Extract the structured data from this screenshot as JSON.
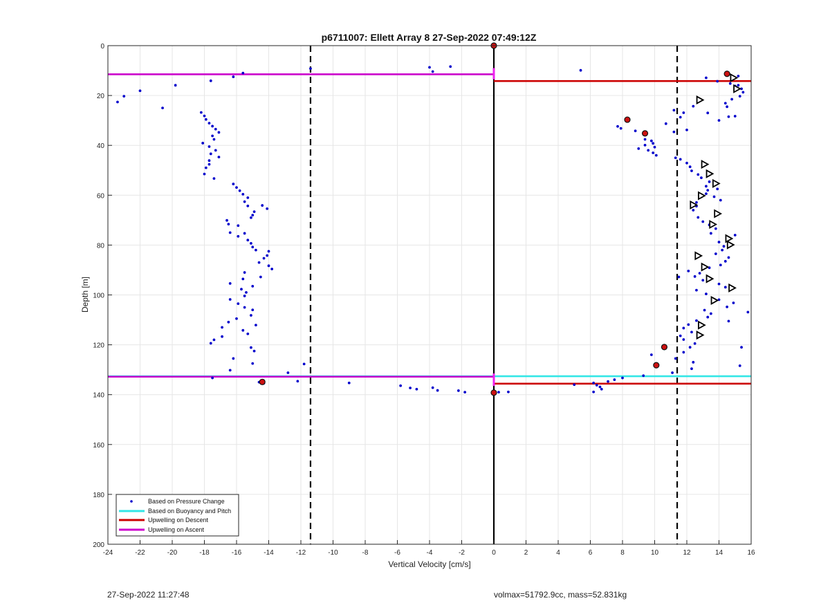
{
  "footer": {
    "timestamp": "27-Sep-2022 11:27:48",
    "float_info": "volmax=51792.9cc, mass=52.831kg"
  },
  "chart_data": {
    "type": "scatter",
    "title": "p6711007: Ellett Array 8 27-Sep-2022 07:49:12Z",
    "xlabel": "Vertical Velocity [cm/s]",
    "ylabel": "Depth [m]",
    "xlim": [
      -24,
      16
    ],
    "ylim": [
      0,
      200
    ],
    "y_reversed": true,
    "grid": true,
    "x_ticks": [
      -24,
      -22,
      -20,
      -18,
      -16,
      -14,
      -12,
      -10,
      -8,
      -6,
      -4,
      -2,
      0,
      2,
      4,
      6,
      8,
      10,
      12,
      14,
      16
    ],
    "y_ticks": [
      0,
      20,
      40,
      60,
      80,
      100,
      120,
      140,
      160,
      180,
      200
    ],
    "legend_position": "bottom-left",
    "legend": [
      {
        "label": "Based on Pressure Change",
        "style": "dot",
        "color": "#0000cc"
      },
      {
        "label": "Based on Buoyancy and Pitch",
        "style": "line",
        "color": "#33e6e6"
      },
      {
        "label": "Upwelling on Descent",
        "style": "line",
        "color": "#cc0000"
      },
      {
        "label": "Upwelling on Ascent",
        "style": "line",
        "color": "#cc00cc"
      }
    ],
    "reference_lines": {
      "threshold_dashed_x": [
        -11.4,
        11.4
      ],
      "zero_line_x": 0
    },
    "upwelling_segments": [
      {
        "series": "Upwelling on Ascent",
        "color": "#cc00cc",
        "x": [
          -24,
          0
        ],
        "y": 11.5
      },
      {
        "series": "Upwelling on Descent",
        "color": "#cc0000",
        "x": [
          0,
          16
        ],
        "y": 14.2
      },
      {
        "series": "Based on Buoyancy and Pitch",
        "color": "#33e6e6",
        "x": [
          -24,
          16
        ],
        "y": 132.6
      },
      {
        "series": "Upwelling on Ascent",
        "color": "#cc00cc",
        "x": [
          -24,
          0
        ],
        "y": 132.8
      },
      {
        "series": "Upwelling on Descent",
        "color": "#cc0000",
        "x": [
          0,
          16
        ],
        "y": 135.6
      }
    ],
    "pressure_change_points": [
      [
        -23.4,
        22.6
      ],
      [
        -23.0,
        20.3
      ],
      [
        -22.0,
        18.1
      ],
      [
        -20.6,
        25.0
      ],
      [
        -19.8,
        15.9
      ],
      [
        -17.6,
        14.1
      ],
      [
        -16.2,
        12.5
      ],
      [
        -15.6,
        11.0
      ],
      [
        -11.4,
        9.2
      ],
      [
        -4.0,
        8.7
      ],
      [
        -3.8,
        10.4
      ],
      [
        -2.7,
        8.4
      ],
      [
        5.4,
        9.9
      ],
      [
        -18.2,
        26.8
      ],
      [
        -18.0,
        28.2
      ],
      [
        -17.9,
        29.6
      ],
      [
        -17.7,
        31.1
      ],
      [
        -17.5,
        32.3
      ],
      [
        -17.3,
        33.5
      ],
      [
        -17.1,
        34.8
      ],
      [
        -17.5,
        36.2
      ],
      [
        -17.4,
        37.6
      ],
      [
        -18.1,
        39.1
      ],
      [
        -17.7,
        40.5
      ],
      [
        -17.3,
        42.0
      ],
      [
        -17.6,
        43.4
      ],
      [
        -17.1,
        44.7
      ],
      [
        -17.7,
        46.1
      ],
      [
        -17.7,
        47.6
      ],
      [
        -17.9,
        49.0
      ],
      [
        -18.0,
        51.5
      ],
      [
        -17.4,
        53.3
      ],
      [
        -16.2,
        55.5
      ],
      [
        -16.0,
        56.9
      ],
      [
        -15.8,
        58.2
      ],
      [
        -15.6,
        59.6
      ],
      [
        -15.3,
        61.0
      ],
      [
        -15.5,
        62.6
      ],
      [
        -15.3,
        64.3
      ],
      [
        -14.4,
        64.1
      ],
      [
        -14.1,
        65.4
      ],
      [
        -14.9,
        66.6
      ],
      [
        -15.0,
        68.0
      ],
      [
        -15.1,
        69.0
      ],
      [
        -16.6,
        70.1
      ],
      [
        -16.5,
        71.6
      ],
      [
        -15.9,
        72.2
      ],
      [
        -16.4,
        75.0
      ],
      [
        -15.5,
        75.3
      ],
      [
        -15.9,
        76.5
      ],
      [
        -15.3,
        78.0
      ],
      [
        -15.1,
        79.3
      ],
      [
        -15.0,
        80.8
      ],
      [
        -14.8,
        82.0
      ],
      [
        -14.0,
        82.5
      ],
      [
        -14.1,
        84.2
      ],
      [
        -14.3,
        85.3
      ],
      [
        -14.6,
        87.0
      ],
      [
        -14.0,
        88.3
      ],
      [
        -13.8,
        89.6
      ],
      [
        -14.5,
        92.8
      ],
      [
        -15.5,
        91.0
      ],
      [
        -15.6,
        93.6
      ],
      [
        -16.4,
        95.4
      ],
      [
        -15.0,
        96.5
      ],
      [
        -15.7,
        97.7
      ],
      [
        -15.4,
        99.0
      ],
      [
        -15.5,
        100.4
      ],
      [
        -16.4,
        101.8
      ],
      [
        -15.9,
        103.5
      ],
      [
        -15.5,
        105.0
      ],
      [
        -15.0,
        106.0
      ],
      [
        -15.1,
        108.2
      ],
      [
        -16.0,
        109.5
      ],
      [
        -16.5,
        110.9
      ],
      [
        -14.8,
        112.1
      ],
      [
        -16.9,
        113.0
      ],
      [
        -15.6,
        114.2
      ],
      [
        -15.3,
        115.6
      ],
      [
        -16.9,
        116.7
      ],
      [
        -17.4,
        118.0
      ],
      [
        -17.6,
        119.4
      ],
      [
        -15.1,
        121.1
      ],
      [
        -14.9,
        122.5
      ],
      [
        -16.2,
        125.5
      ],
      [
        -15.0,
        127.5
      ],
      [
        -11.8,
        127.7
      ],
      [
        -12.8,
        131.2
      ],
      [
        -16.4,
        130.2
      ],
      [
        -17.5,
        133.3
      ],
      [
        -14.6,
        135.0
      ],
      [
        -14.3,
        135.4
      ],
      [
        -12.2,
        134.6
      ],
      [
        -9.0,
        135.3
      ],
      [
        -5.8,
        136.4
      ],
      [
        -5.2,
        137.3
      ],
      [
        -4.8,
        137.8
      ],
      [
        -3.8,
        137.2
      ],
      [
        -3.5,
        138.3
      ],
      [
        -2.2,
        138.4
      ],
      [
        -1.8,
        139.0
      ],
      [
        0.3,
        139.0
      ],
      [
        0.9,
        138.9
      ],
      [
        5.0,
        136.0
      ],
      [
        6.2,
        135.3
      ],
      [
        6.4,
        136.2
      ],
      [
        6.6,
        136.9
      ],
      [
        6.7,
        137.8
      ],
      [
        6.2,
        138.9
      ],
      [
        7.1,
        134.7
      ],
      [
        7.5,
        134.0
      ],
      [
        8.0,
        133.3
      ],
      [
        9.3,
        132.4
      ],
      [
        11.1,
        131.2
      ],
      [
        12.3,
        129.6
      ],
      [
        12.4,
        127.0
      ],
      [
        11.3,
        125.5
      ],
      [
        9.8,
        124.0
      ],
      [
        11.8,
        123.0
      ],
      [
        12.2,
        121.0
      ],
      [
        12.5,
        119.5
      ],
      [
        11.8,
        117.9
      ],
      [
        11.6,
        116.4
      ],
      [
        12.3,
        114.9
      ],
      [
        11.8,
        113.3
      ],
      [
        12.1,
        111.9
      ],
      [
        12.6,
        110.3
      ],
      [
        13.3,
        108.9
      ],
      [
        13.5,
        107.5
      ],
      [
        13.1,
        106.1
      ],
      [
        14.5,
        104.8
      ],
      [
        14.9,
        103.2
      ],
      [
        14.0,
        101.9
      ],
      [
        13.2,
        99.6
      ],
      [
        12.6,
        98.1
      ],
      [
        14.4,
        96.9
      ],
      [
        14.0,
        95.6
      ],
      [
        13.0,
        94.1
      ],
      [
        12.5,
        92.6
      ],
      [
        12.8,
        91.3
      ],
      [
        12.1,
        90.4
      ],
      [
        13.4,
        89.1
      ],
      [
        14.1,
        88.0
      ],
      [
        11.5,
        92.8
      ],
      [
        14.4,
        86.5
      ],
      [
        14.6,
        85.0
      ],
      [
        13.8,
        83.5
      ],
      [
        14.2,
        82.0
      ],
      [
        14.3,
        80.5
      ],
      [
        14.0,
        78.8
      ],
      [
        14.6,
        77.3
      ],
      [
        15.0,
        76.0
      ],
      [
        13.5,
        75.3
      ],
      [
        13.8,
        73.4
      ],
      [
        13.4,
        71.9
      ],
      [
        13.0,
        70.6
      ],
      [
        12.7,
        68.9
      ],
      [
        13.9,
        67.3
      ],
      [
        12.4,
        66.0
      ],
      [
        12.6,
        64.4
      ],
      [
        12.6,
        62.9
      ],
      [
        14.1,
        62.0
      ],
      [
        13.7,
        60.6
      ],
      [
        13.2,
        59.4
      ],
      [
        13.3,
        58.0
      ],
      [
        13.9,
        57.5
      ],
      [
        13.2,
        56.4
      ],
      [
        13.4,
        54.6
      ],
      [
        12.9,
        53.0
      ],
      [
        12.7,
        51.7
      ],
      [
        12.3,
        50.2
      ],
      [
        12.2,
        48.6
      ],
      [
        12.0,
        47.1
      ],
      [
        11.6,
        45.6
      ],
      [
        11.3,
        45.0
      ],
      [
        10.1,
        44.0
      ],
      [
        9.9,
        43.0
      ],
      [
        9.6,
        42.0
      ],
      [
        9.0,
        41.3
      ],
      [
        10.0,
        40.7
      ],
      [
        9.4,
        39.9
      ],
      [
        9.9,
        39.2
      ],
      [
        9.8,
        38.2
      ],
      [
        9.4,
        37.6
      ],
      [
        8.8,
        34.2
      ],
      [
        7.9,
        33.2
      ],
      [
        7.7,
        32.4
      ],
      [
        10.7,
        31.3
      ],
      [
        12.0,
        33.8
      ],
      [
        11.2,
        34.6
      ],
      [
        11.6,
        28.7
      ],
      [
        12.4,
        24.3
      ],
      [
        11.2,
        25.9
      ],
      [
        11.8,
        26.9
      ],
      [
        13.3,
        27.0
      ],
      [
        14.0,
        30.0
      ],
      [
        14.6,
        28.5
      ],
      [
        15.0,
        28.3
      ],
      [
        14.5,
        24.5
      ],
      [
        14.4,
        23.1
      ],
      [
        14.8,
        21.5
      ],
      [
        15.3,
        20.3
      ],
      [
        15.5,
        18.7
      ],
      [
        15.4,
        17.3
      ],
      [
        15.0,
        16.2
      ],
      [
        14.7,
        15.2
      ],
      [
        13.9,
        14.3
      ],
      [
        13.2,
        12.9
      ],
      [
        15.2,
        12.2
      ],
      [
        15.8,
        106.9
      ],
      [
        15.4,
        121.0
      ],
      [
        15.3,
        128.4
      ],
      [
        14.6,
        110.5
      ],
      [
        15.2,
        15.9
      ]
    ],
    "triangle_markers": [
      [
        14.9,
        12.9
      ],
      [
        15.1,
        17.3
      ],
      [
        12.8,
        21.8
      ],
      [
        13.1,
        47.6
      ],
      [
        13.4,
        51.4
      ],
      [
        13.8,
        55.3
      ],
      [
        12.9,
        60.2
      ],
      [
        12.4,
        63.9
      ],
      [
        13.9,
        67.4
      ],
      [
        13.6,
        71.7
      ],
      [
        14.6,
        77.4
      ],
      [
        14.7,
        79.9
      ],
      [
        12.7,
        84.3
      ],
      [
        13.1,
        88.8
      ],
      [
        13.4,
        93.5
      ],
      [
        14.8,
        97.2
      ],
      [
        13.7,
        102.2
      ],
      [
        12.9,
        112.1
      ],
      [
        12.8,
        116.1
      ]
    ],
    "red_markers": [
      [
        14.5,
        11.3
      ],
      [
        8.3,
        29.7
      ],
      [
        9.4,
        35.2
      ],
      [
        10.6,
        120.9
      ],
      [
        10.1,
        128.2
      ],
      [
        -14.4,
        134.9
      ],
      [
        0,
        139.2
      ],
      [
        0,
        0
      ]
    ]
  }
}
